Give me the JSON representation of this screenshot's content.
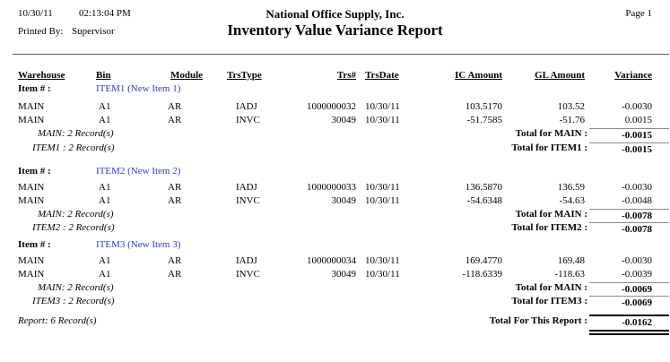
{
  "page": {
    "printed_date": "10/30/11",
    "printed_time": "02:13:04 PM",
    "page_label": "Page 1",
    "company": "National Office Supply, Inc.",
    "title": "Inventory Value Variance Report",
    "printed_by_label": "Printed By:",
    "printed_by": "Supervisor"
  },
  "colors": {
    "item_link": "#3434e0",
    "header_rule": "#5a5a5a",
    "total_rule": "#8a8a8a",
    "report_rule": "#000000"
  },
  "columns": [
    "Warehouse",
    "Bin",
    "Module",
    "TrsType",
    "Trs#",
    "TrsDate",
    "IC Amount",
    "GL Amount",
    "Variance"
  ],
  "item_label": "Item # :",
  "groups": [
    {
      "item_code": "ITEM1 (New Item 1)",
      "rows": [
        {
          "warehouse": "MAIN",
          "bin": "A1",
          "module": "AR",
          "trstype": "IADJ",
          "trsno": "1000000032",
          "trsdate": "10/30/11",
          "ic": "103.5170",
          "gl": "103.52",
          "variance": "-0.0030"
        },
        {
          "warehouse": "MAIN",
          "bin": "A1",
          "module": "AR",
          "trstype": "INVC",
          "trsno": "30049",
          "trsdate": "10/30/11",
          "ic": "-51.7585",
          "gl": "-51.76",
          "variance": "0.0015"
        }
      ],
      "warehouse_count": "MAIN: 2 Record(s)",
      "warehouse_total_label": "Total for MAIN :",
      "warehouse_total": "-0.0015",
      "item_count": "ITEM1 : 2 Record(s)",
      "item_total_label": "Total for ITEM1 :",
      "item_total": "-0.0015"
    },
    {
      "item_code": "ITEM2 (New Item 2)",
      "rows": [
        {
          "warehouse": "MAIN",
          "bin": "A1",
          "module": "AR",
          "trstype": "IADJ",
          "trsno": "1000000033",
          "trsdate": "10/30/11",
          "ic": "136.5870",
          "gl": "136.59",
          "variance": "-0.0030"
        },
        {
          "warehouse": "MAIN",
          "bin": "A1",
          "module": "AR",
          "trstype": "INVC",
          "trsno": "30049",
          "trsdate": "10/30/11",
          "ic": "-54.6348",
          "gl": "-54.63",
          "variance": "-0.0048"
        }
      ],
      "warehouse_count": "MAIN: 2 Record(s)",
      "warehouse_total_label": "Total for MAIN :",
      "warehouse_total": "-0.0078",
      "item_count": "ITEM2 : 2 Record(s)",
      "item_total_label": "Total for ITEM2 :",
      "item_total": "-0.0078"
    },
    {
      "item_code": "ITEM3 (New Item 3)",
      "rows": [
        {
          "warehouse": "MAIN",
          "bin": "A1",
          "module": "AR",
          "trstype": "IADJ",
          "trsno": "1000000034",
          "trsdate": "10/30/11",
          "ic": "169.4770",
          "gl": "169.48",
          "variance": "-0.0030"
        },
        {
          "warehouse": "MAIN",
          "bin": "A1",
          "module": "AR",
          "trstype": "INVC",
          "trsno": "30049",
          "trsdate": "10/30/11",
          "ic": "-118.6339",
          "gl": "-118.63",
          "variance": "-0.0039"
        }
      ],
      "warehouse_count": "MAIN: 2 Record(s)",
      "warehouse_total_label": "Total for MAIN :",
      "warehouse_total": "-0.0069",
      "item_count": "ITEM3 : 2 Record(s)",
      "item_total_label": "Total for ITEM3 :",
      "item_total": "-0.0069"
    }
  ],
  "report": {
    "count": "Report: 6 Record(s)",
    "total_label": "Total For This Report :",
    "total": "-0.0162"
  }
}
